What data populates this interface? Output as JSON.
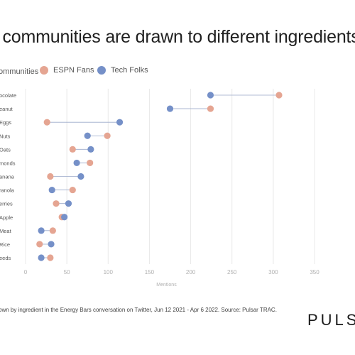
{
  "title": "t communities are drawn to different ingredients",
  "legend": {
    "title": "ommunities",
    "espn_label": "ESPN Fans",
    "tech_label": "Tech Folks"
  },
  "colors": {
    "espn": "#e5a592",
    "tech": "#7590c8",
    "connector": "#9aa9c9",
    "grid": "#e8e8e8",
    "axis_text": "#b0b0b0"
  },
  "chart_data": {
    "type": "dot",
    "categories": [
      "ocolate",
      "eanut",
      "Eggs",
      "Nuts",
      "Oats",
      "monds",
      "anana",
      "ranola",
      "erries",
      "Apple",
      "Meat",
      "Rice",
      "eeds"
    ],
    "series": [
      {
        "name": "ESPN Fans",
        "values": [
          307,
          224,
          26,
          99,
          57,
          78,
          30,
          57,
          37,
          44,
          33,
          17,
          30
        ]
      },
      {
        "name": "Tech Folks",
        "values": [
          224,
          175,
          114,
          75,
          79,
          62,
          67,
          32,
          52,
          47,
          19,
          31,
          19
        ]
      }
    ],
    "xlabel": "Mentions",
    "xlim": [
      0,
      350
    ],
    "xticks": [
      0,
      50,
      100,
      150,
      200,
      250,
      300,
      350
    ],
    "grid": true
  },
  "footer": {
    "source": "own by ingredient in the Energy Bars conversation on Twitter, Jun 12 2021 - Apr 6 2022. Source: Pulsar TRAC.",
    "brand": "PULSA"
  }
}
